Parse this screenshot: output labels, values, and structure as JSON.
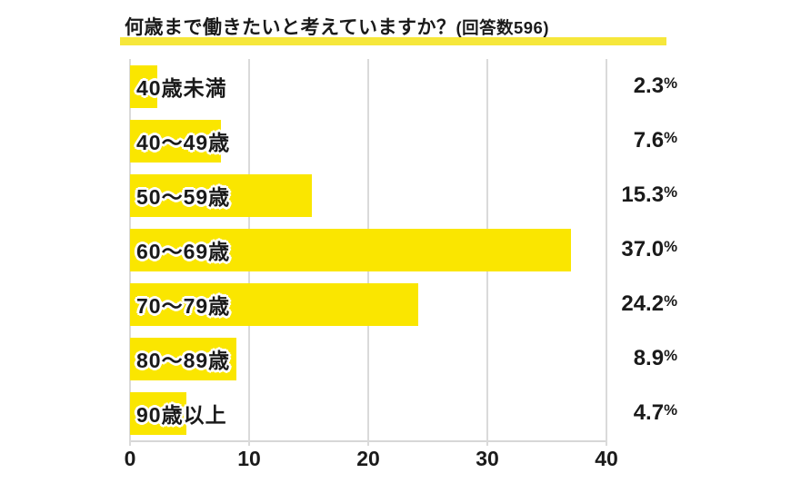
{
  "title": {
    "main": "何歳まで働きたいと考えていますか？",
    "count": "(回答数596)"
  },
  "colors": {
    "bar": "#fae600",
    "underline": "#f6e73b",
    "grid": "#dadada",
    "text": "#1a1a1a"
  },
  "chart_data": {
    "type": "bar",
    "orientation": "horizontal",
    "title": "何歳まで働きたいと考えていますか？(回答数596)",
    "categories": [
      "40歳未満",
      "40～49歳",
      "50～59歳",
      "60～69歳",
      "70～79歳",
      "80～89歳",
      "90歳以上"
    ],
    "values": [
      2.3,
      7.6,
      15.3,
      37.0,
      24.2,
      8.9,
      4.7
    ],
    "value_labels": [
      "2.3%",
      "7.6%",
      "15.3%",
      "37.0%",
      "24.2%",
      "8.9%",
      "4.7%"
    ],
    "xlabel": "",
    "ylabel": "",
    "xlim": [
      0,
      40
    ],
    "x_ticks": [
      "0",
      "10",
      "20",
      "30",
      "40"
    ],
    "grid": true,
    "legend": false
  }
}
